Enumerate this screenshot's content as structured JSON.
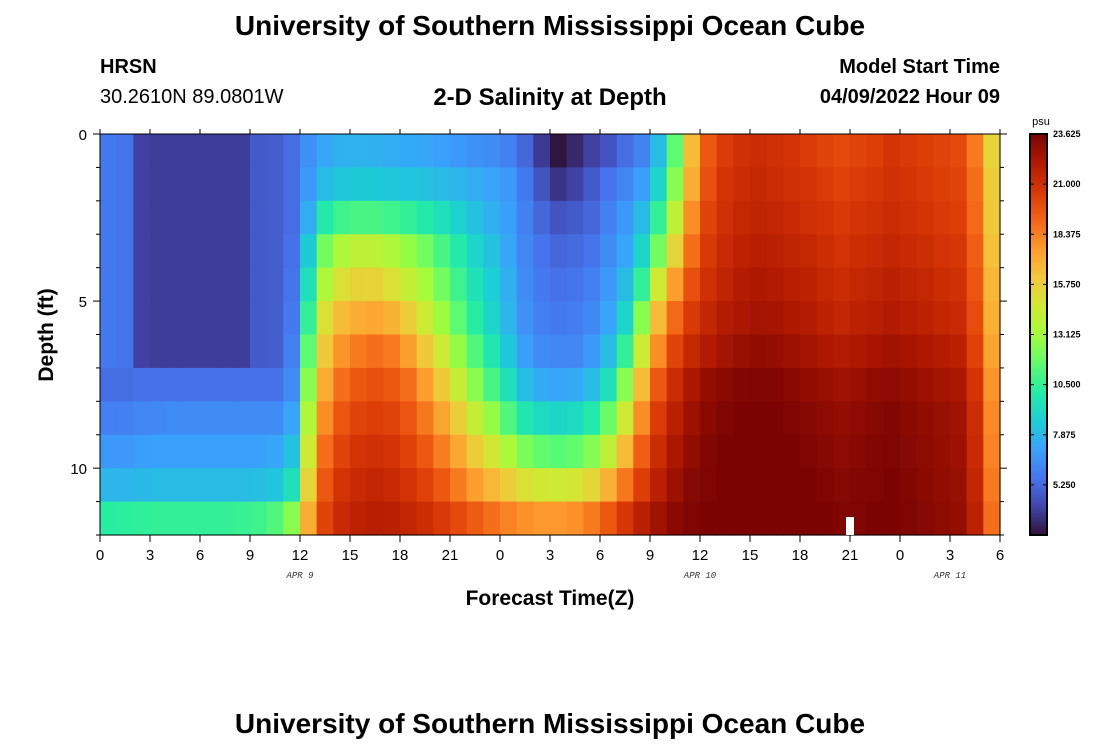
{
  "header": {
    "title": "University of Southern Mississippi Ocean Cube",
    "station": "HRSN",
    "coords": "30.2610N  89.0801W",
    "plot_title": "2-D Salinity at Depth",
    "model_start_label": "Model Start Time",
    "model_start_value": "04/09/2022 Hour 09"
  },
  "footer": {
    "title": "University of Southern Mississippi Ocean Cube"
  },
  "chart_data": {
    "type": "heatmap",
    "title": "2-D Salinity at Depth",
    "xlabel": "Forecast Time(Z)",
    "ylabel": "Depth (ft)",
    "x_hours_from_start": [
      0,
      54
    ],
    "x_tick_labels": [
      "0",
      "3",
      "6",
      "9",
      "12",
      "15",
      "18",
      "21",
      "0",
      "3",
      "6",
      "9",
      "12",
      "15",
      "18",
      "21",
      "0",
      "3",
      "6"
    ],
    "date_labels": [
      {
        "text": "APR 9",
        "hour": 12
      },
      {
        "text": "APR 10",
        "hour": 36
      },
      {
        "text": "APR 11",
        "hour": 51
      }
    ],
    "ylim": [
      0,
      12
    ],
    "y_ticks": [
      0,
      5,
      10
    ],
    "y_tick_labels": [
      "0",
      "5",
      "10"
    ],
    "depth_levels": 12,
    "current_time_hour": 45,
    "colorbar": {
      "unit": "psu",
      "min": 2.625,
      "max": 23.625,
      "tick_values": [
        5.25,
        7.875,
        10.5,
        13.125,
        15.75,
        18.375,
        21.0,
        23.625
      ],
      "tick_labels": [
        "5.250",
        "7.875",
        "10.500",
        "13.125",
        "15.750",
        "18.375",
        "21.000",
        "23.625"
      ],
      "colors": [
        "#30123b",
        "#4145ab",
        "#4675ed",
        "#39a2fc",
        "#1bcfd4",
        "#24eca6",
        "#61fc6c",
        "#a4fc3b",
        "#d1e834",
        "#f3c63a",
        "#fe9b2d",
        "#f36315",
        "#d93806",
        "#b11901",
        "#7a0403"
      ]
    },
    "salinity_psu": [
      [
        5.8,
        5.6,
        4.0,
        3.9,
        3.9,
        3.9,
        3.9,
        3.9,
        3.9,
        4.8,
        4.9,
        5.4,
        6.5,
        7.3,
        7.6,
        7.7,
        7.6,
        7.5,
        7.4,
        7.3,
        7.1,
        6.8,
        6.6,
        6.4,
        6.0,
        5.2,
        3.8,
        2.7,
        3.3,
        4.0,
        4.6,
        5.4,
        6.1,
        8.0,
        11.5,
        16.5,
        19.5,
        20.5,
        21.0,
        21.2,
        21.0,
        20.8,
        20.5,
        20.2,
        20.0,
        20.2,
        20.4,
        20.8,
        20.6,
        20.4,
        20.2,
        20.0,
        18.5,
        15.5
      ],
      [
        5.8,
        5.6,
        4.0,
        3.9,
        3.9,
        3.9,
        3.9,
        3.9,
        3.9,
        4.8,
        4.9,
        5.4,
        6.8,
        8.0,
        8.4,
        8.5,
        8.5,
        8.4,
        8.3,
        8.2,
        8.0,
        7.8,
        7.5,
        7.2,
        6.8,
        5.8,
        4.6,
        3.6,
        4.0,
        4.8,
        5.6,
        6.2,
        7.0,
        9.0,
        12.5,
        17.0,
        19.8,
        20.8,
        21.2,
        21.4,
        21.2,
        21.0,
        20.8,
        20.5,
        20.3,
        20.5,
        20.7,
        21.0,
        20.8,
        20.6,
        20.4,
        20.2,
        18.8,
        15.8
      ],
      [
        5.8,
        5.6,
        4.0,
        3.9,
        3.9,
        3.9,
        3.9,
        3.9,
        3.9,
        4.8,
        4.9,
        5.4,
        7.5,
        10.0,
        10.8,
        11.0,
        11.0,
        10.8,
        10.5,
        10.0,
        9.5,
        8.8,
        8.2,
        7.6,
        7.0,
        6.0,
        5.2,
        4.6,
        4.8,
        5.2,
        6.0,
        6.8,
        8.0,
        10.5,
        14.0,
        18.0,
        20.2,
        21.0,
        21.4,
        21.6,
        21.5,
        21.3,
        21.0,
        20.8,
        20.6,
        20.8,
        21.0,
        21.2,
        21.0,
        20.8,
        20.6,
        20.4,
        19.0,
        16.0
      ],
      [
        5.8,
        5.6,
        4.0,
        3.9,
        3.9,
        3.9,
        3.9,
        3.9,
        3.9,
        4.8,
        4.9,
        5.5,
        8.5,
        12.0,
        13.5,
        14.0,
        14.0,
        13.5,
        12.8,
        12.0,
        11.0,
        10.0,
        9.0,
        8.2,
        7.3,
        6.2,
        5.6,
        5.2,
        5.3,
        5.6,
        6.4,
        7.2,
        9.0,
        12.0,
        15.5,
        18.8,
        20.6,
        21.3,
        21.7,
        21.9,
        21.8,
        21.6,
        21.4,
        21.1,
        20.9,
        21.1,
        21.3,
        21.5,
        21.3,
        21.1,
        20.9,
        20.7,
        19.3,
        16.3
      ],
      [
        5.8,
        5.6,
        4.0,
        3.9,
        3.9,
        3.9,
        3.9,
        3.9,
        3.9,
        4.8,
        4.9,
        5.6,
        9.5,
        13.5,
        15.0,
        15.5,
        15.6,
        15.0,
        14.2,
        13.2,
        12.0,
        10.8,
        9.6,
        8.6,
        7.6,
        6.4,
        5.8,
        5.5,
        5.6,
        6.0,
        6.8,
        8.0,
        10.5,
        14.5,
        17.5,
        19.8,
        21.0,
        21.6,
        22.0,
        22.2,
        22.1,
        21.9,
        21.7,
        21.4,
        21.2,
        21.4,
        21.6,
        21.8,
        21.6,
        21.4,
        21.2,
        21.0,
        19.6,
        16.6
      ],
      [
        5.8,
        5.6,
        4.0,
        3.9,
        3.9,
        3.9,
        3.9,
        3.9,
        3.9,
        4.8,
        4.9,
        5.8,
        10.5,
        15.0,
        16.5,
        17.0,
        17.2,
        16.8,
        15.8,
        14.5,
        13.0,
        11.5,
        10.2,
        9.0,
        7.8,
        6.6,
        6.0,
        5.8,
        5.9,
        6.3,
        7.2,
        9.0,
        12.5,
        16.5,
        19.0,
        20.6,
        21.5,
        22.0,
        22.3,
        22.5,
        22.4,
        22.2,
        22.0,
        21.7,
        21.5,
        21.7,
        21.9,
        22.1,
        21.9,
        21.7,
        21.5,
        21.3,
        19.9,
        16.9
      ],
      [
        5.8,
        5.6,
        4.0,
        3.9,
        3.9,
        3.9,
        3.9,
        3.9,
        3.9,
        4.8,
        4.9,
        6.0,
        11.5,
        16.0,
        17.8,
        18.5,
        18.8,
        18.5,
        17.5,
        16.0,
        14.5,
        12.8,
        11.2,
        9.8,
        8.4,
        7.0,
        6.4,
        6.2,
        6.3,
        6.8,
        8.0,
        10.5,
        14.5,
        18.0,
        20.2,
        21.4,
        22.1,
        22.5,
        22.8,
        23.0,
        22.9,
        22.7,
        22.5,
        22.2,
        22.0,
        22.2,
        22.4,
        22.6,
        22.4,
        22.2,
        22.0,
        21.8,
        20.3,
        17.3
      ],
      [
        5.4,
        5.4,
        5.5,
        5.5,
        5.5,
        5.5,
        5.5,
        5.5,
        5.5,
        5.5,
        5.5,
        6.4,
        12.5,
        17.0,
        18.8,
        19.5,
        19.8,
        19.5,
        18.8,
        17.5,
        16.0,
        14.2,
        12.5,
        11.0,
        9.5,
        8.0,
        7.4,
        7.2,
        7.4,
        8.0,
        9.5,
        12.5,
        16.5,
        19.5,
        21.2,
        22.3,
        22.9,
        23.2,
        23.4,
        23.5,
        23.4,
        23.2,
        23.0,
        22.8,
        22.6,
        22.8,
        23.0,
        23.1,
        22.9,
        22.7,
        22.5,
        22.3,
        20.8,
        17.8
      ],
      [
        6.0,
        6.0,
        6.2,
        6.3,
        6.4,
        6.4,
        6.4,
        6.4,
        6.4,
        6.4,
        6.4,
        7.2,
        13.5,
        18.0,
        19.6,
        20.2,
        20.4,
        20.2,
        19.6,
        18.6,
        17.3,
        15.8,
        14.2,
        12.8,
        11.2,
        9.8,
        9.2,
        9.0,
        9.2,
        10.0,
        11.8,
        14.5,
        18.0,
        20.5,
        21.8,
        22.7,
        23.2,
        23.5,
        23.6,
        23.6,
        23.6,
        23.5,
        23.3,
        23.1,
        22.9,
        23.1,
        23.3,
        23.4,
        23.2,
        23.0,
        22.8,
        22.6,
        21.1,
        18.1
      ],
      [
        6.8,
        6.8,
        7.0,
        7.1,
        7.1,
        7.1,
        7.1,
        7.1,
        7.1,
        7.1,
        7.2,
        8.2,
        14.5,
        18.8,
        20.2,
        20.8,
        21.0,
        20.8,
        20.3,
        19.5,
        18.4,
        17.2,
        15.8,
        14.6,
        13.4,
        12.2,
        11.6,
        11.4,
        11.6,
        12.4,
        14.0,
        16.5,
        19.3,
        21.2,
        22.3,
        23.0,
        23.4,
        23.6,
        23.6,
        23.6,
        23.6,
        23.6,
        23.5,
        23.3,
        23.1,
        23.3,
        23.4,
        23.5,
        23.3,
        23.1,
        22.9,
        22.7,
        21.3,
        18.3
      ],
      [
        7.8,
        7.8,
        7.9,
        8.0,
        8.0,
        8.0,
        8.0,
        8.0,
        8.0,
        8.1,
        8.3,
        9.5,
        15.5,
        19.5,
        20.8,
        21.3,
        21.5,
        21.3,
        20.9,
        20.3,
        19.5,
        18.5,
        17.5,
        16.6,
        15.8,
        15.0,
        14.6,
        14.5,
        14.7,
        15.4,
        16.8,
        18.6,
        20.4,
        21.8,
        22.7,
        23.3,
        23.5,
        23.6,
        23.6,
        23.6,
        23.6,
        23.6,
        23.6,
        23.5,
        23.3,
        23.4,
        23.5,
        23.6,
        23.4,
        23.2,
        23.0,
        22.8,
        21.5,
        18.5
      ],
      [
        10.2,
        10.3,
        10.4,
        10.5,
        10.5,
        10.5,
        10.5,
        10.5,
        10.6,
        10.8,
        11.2,
        12.5,
        17.0,
        20.2,
        21.3,
        21.7,
        21.9,
        21.8,
        21.5,
        21.1,
        20.6,
        20.0,
        19.4,
        18.8,
        18.3,
        17.9,
        17.7,
        17.7,
        17.9,
        18.5,
        19.5,
        20.7,
        21.8,
        22.6,
        23.2,
        23.5,
        23.6,
        23.6,
        23.6,
        23.6,
        23.6,
        23.6,
        23.6,
        23.6,
        23.5,
        23.5,
        23.6,
        23.6,
        23.5,
        23.3,
        23.1,
        22.9,
        21.7,
        18.8
      ]
    ]
  }
}
